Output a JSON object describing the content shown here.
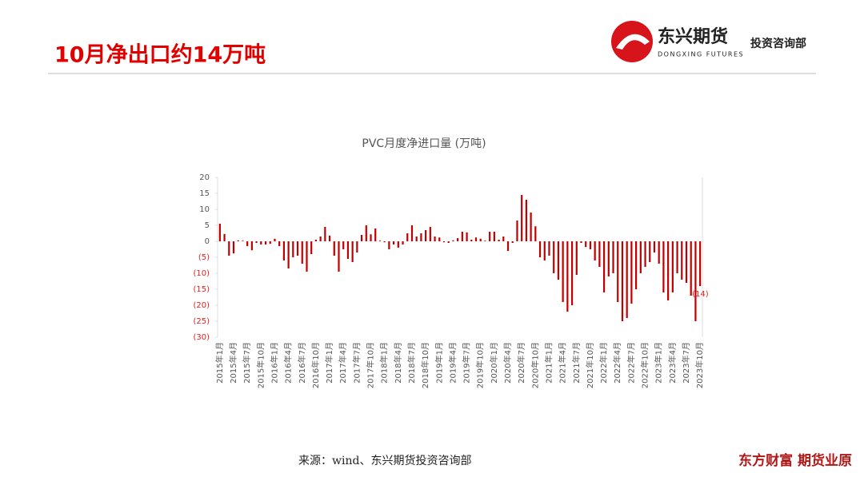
{
  "header": {
    "title": "10月净出口约14万吨"
  },
  "logo": {
    "name": "东兴期货",
    "english": "DONGXING FUTURES",
    "dept": "投资咨询部"
  },
  "source": "来源：wind、东兴期货投资咨询部",
  "watermark": "东方财富 期货业原",
  "chart_data": {
    "type": "bar",
    "title": "PVC月度净进口量 (万吨)",
    "color": "#c00000",
    "grid": false,
    "categories": [
      "2015年1月",
      null,
      null,
      "2015年4月",
      null,
      null,
      "2015年7月",
      null,
      null,
      "2015年10月",
      null,
      null,
      "2016年1月",
      null,
      null,
      "2016年4月",
      null,
      null,
      "2016年7月",
      null,
      null,
      "2016年10月",
      null,
      null,
      "2017年1月",
      null,
      null,
      "2017年4月",
      null,
      null,
      "2017年7月",
      null,
      null,
      "2017年10月",
      null,
      null,
      "2018年1月",
      null,
      null,
      "2018年4月",
      null,
      null,
      "2018年7月",
      null,
      null,
      "2018年10月",
      null,
      null,
      "2019年1月",
      null,
      null,
      "2019年4月",
      null,
      null,
      "2019年7月",
      null,
      null,
      "2019年10月",
      null,
      null,
      "2020年1月",
      null,
      null,
      "2020年4月",
      null,
      null,
      "2020年7月",
      null,
      null,
      "2020年10月",
      null,
      null,
      "2021年1月",
      null,
      null,
      "2021年4月",
      null,
      null,
      "2021年7月",
      null,
      null,
      "2021年10月",
      null,
      null,
      "2022年1月",
      null,
      null,
      "2022年4月",
      null,
      null,
      "2022年7月",
      null,
      null,
      "2022年10月",
      null,
      null,
      "2023年1月",
      null,
      null,
      "2023年4月",
      null,
      null,
      "2023年7月",
      null,
      null,
      "2023年10月"
    ],
    "values": [
      5.5,
      2.3,
      -4.5,
      -3.8,
      0.3,
      0.2,
      -1.5,
      -2.8,
      -0.5,
      -1,
      -1,
      -0.8,
      0.8,
      -1.5,
      -6,
      -8.5,
      -5,
      -4.5,
      -7,
      -9.5,
      -4,
      0.5,
      1.5,
      4.5,
      1.8,
      -4.5,
      -9.5,
      -2.5,
      -5.5,
      -6.5,
      -3.5,
      2,
      5,
      2.2,
      4,
      0.2,
      -0.3,
      -2.5,
      -1,
      -2,
      -1,
      2.5,
      5,
      1.5,
      2.5,
      3.5,
      4.5,
      1.5,
      1.2,
      -0.3,
      -0.5,
      0.3,
      1,
      3,
      2.8,
      0.5,
      1.2,
      0.8,
      0.2,
      3,
      3,
      0.5,
      1.5,
      -3,
      -0.5,
      6.5,
      14.5,
      13,
      9,
      4.7,
      -5,
      -6,
      -4.5,
      -10,
      -12,
      -19,
      -22,
      -20,
      -10.5,
      -0.5,
      -1.8,
      -2.5,
      -6,
      -8,
      -16,
      -11,
      -10,
      -19,
      -25,
      -24,
      -19.5,
      -15,
      -10,
      -8,
      -6.5,
      -3.5,
      -7,
      -16,
      -18.5,
      -16,
      -10,
      -12,
      -13,
      -17,
      -25,
      -14
    ],
    "value_labels": [
      null,
      null,
      null,
      null,
      null,
      null,
      null,
      null,
      null,
      null,
      null,
      null,
      null,
      null,
      null,
      null,
      null,
      null,
      null,
      null,
      null,
      null,
      null,
      null,
      null,
      null,
      null,
      null,
      null,
      null,
      null,
      null,
      null,
      null,
      null,
      null,
      null,
      null,
      null,
      null,
      null,
      null,
      null,
      null,
      null,
      null,
      null,
      null,
      null,
      null,
      null,
      null,
      null,
      null,
      null,
      null,
      null,
      null,
      null,
      null,
      null,
      null,
      null,
      null,
      null,
      null,
      null,
      null,
      null,
      null,
      null,
      null,
      null,
      null,
      null,
      null,
      null,
      null,
      null,
      null,
      null,
      null,
      null,
      null,
      null,
      null,
      null,
      null,
      null,
      null,
      null,
      null,
      null,
      null,
      null,
      null,
      null,
      null,
      null,
      null,
      null,
      null,
      null,
      null,
      null,
      "(14)"
    ],
    "ylim": [
      -30,
      20
    ],
    "yticks": [
      20,
      15,
      10,
      5,
      0,
      {
        "value": -5,
        "label": "(5)"
      },
      {
        "value": -10,
        "label": "(10)"
      },
      {
        "value": -15,
        "label": "(15)"
      },
      {
        "value": -20,
        "label": "(20)"
      },
      {
        "value": -25,
        "label": "(25)"
      },
      {
        "value": -30,
        "label": "(30)"
      }
    ]
  }
}
